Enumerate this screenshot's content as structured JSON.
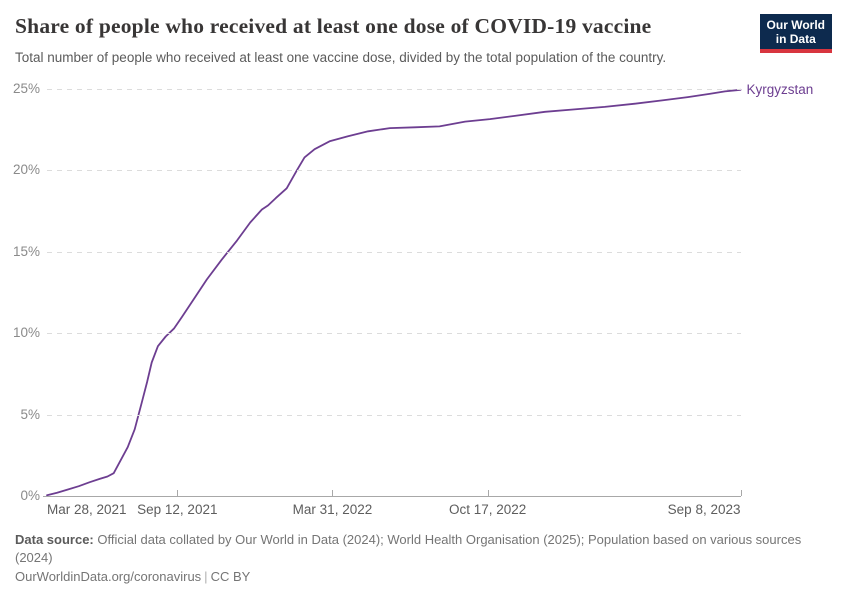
{
  "header": {
    "title": "Share of people who received at least one dose of COVID-19 vaccine",
    "subtitle": "Total number of people who received at least one vaccine dose, divided by the total population of the country.",
    "logo": {
      "line1": "Our World",
      "line2": "in Data"
    }
  },
  "chart_data": {
    "type": "line",
    "title": "Share of people who received at least one dose of COVID-19 vaccine",
    "xlabel": "",
    "ylabel": "",
    "x_range": [
      "2021-03-28",
      "2023-09-08"
    ],
    "ylim": [
      0,
      25
    ],
    "grid": "horizontal-dashed",
    "legend_position": "end-of-line-label",
    "y_ticks": [
      {
        "label": "0%",
        "value": 0
      },
      {
        "label": "5%",
        "value": 5
      },
      {
        "label": "10%",
        "value": 10
      },
      {
        "label": "15%",
        "value": 15
      },
      {
        "label": "20%",
        "value": 20
      },
      {
        "label": "25%",
        "value": 25
      }
    ],
    "x_ticks": [
      {
        "label": "Mar 28, 2021",
        "date": "2021-03-28",
        "align": "left"
      },
      {
        "label": "Sep 12, 2021",
        "date": "2021-09-12",
        "align": "center"
      },
      {
        "label": "Mar 31, 2022",
        "date": "2022-03-31",
        "align": "center"
      },
      {
        "label": "Oct 17, 2022",
        "date": "2022-10-17",
        "align": "center"
      },
      {
        "label": "Sep 8, 2023",
        "date": "2023-09-08",
        "align": "right"
      }
    ],
    "series": [
      {
        "name": "Kyrgyzstan",
        "color": "#6D3E91",
        "points": [
          [
            "2021-03-28",
            0.05
          ],
          [
            "2021-04-10",
            0.2
          ],
          [
            "2021-04-24",
            0.4
          ],
          [
            "2021-05-08",
            0.6
          ],
          [
            "2021-05-22",
            0.85
          ],
          [
            "2021-06-04",
            1.05
          ],
          [
            "2021-06-14",
            1.2
          ],
          [
            "2021-06-22",
            1.4
          ],
          [
            "2021-07-01",
            2.2
          ],
          [
            "2021-07-10",
            3.0
          ],
          [
            "2021-07-19",
            4.1
          ],
          [
            "2021-07-28",
            5.7
          ],
          [
            "2021-08-04",
            7.0
          ],
          [
            "2021-08-10",
            8.2
          ],
          [
            "2021-08-18",
            9.2
          ],
          [
            "2021-08-28",
            9.8
          ],
          [
            "2021-09-08",
            10.3
          ],
          [
            "2021-09-18",
            11.0
          ],
          [
            "2021-10-02",
            12.0
          ],
          [
            "2021-10-20",
            13.3
          ],
          [
            "2021-11-08",
            14.5
          ],
          [
            "2021-11-28",
            15.7
          ],
          [
            "2021-12-15",
            16.8
          ],
          [
            "2021-12-30",
            17.6
          ],
          [
            "2022-01-07",
            17.85
          ],
          [
            "2022-01-17",
            18.3
          ],
          [
            "2022-01-31",
            18.9
          ],
          [
            "2022-02-13",
            20.0
          ],
          [
            "2022-02-23",
            20.8
          ],
          [
            "2022-03-08",
            21.3
          ],
          [
            "2022-03-28",
            21.8
          ],
          [
            "2022-04-20",
            22.1
          ],
          [
            "2022-05-16",
            22.4
          ],
          [
            "2022-06-13",
            22.6
          ],
          [
            "2022-07-15",
            22.65
          ],
          [
            "2022-08-16",
            22.7
          ],
          [
            "2022-09-18",
            23.0
          ],
          [
            "2022-10-20",
            23.15
          ],
          [
            "2022-11-21",
            23.35
          ],
          [
            "2022-12-30",
            23.6
          ],
          [
            "2023-02-06",
            23.75
          ],
          [
            "2023-03-17",
            23.9
          ],
          [
            "2023-04-25",
            24.1
          ],
          [
            "2023-05-30",
            24.3
          ],
          [
            "2023-07-02",
            24.5
          ],
          [
            "2023-07-30",
            24.7
          ],
          [
            "2023-08-19",
            24.85
          ],
          [
            "2023-09-08",
            24.95
          ]
        ]
      }
    ]
  },
  "footer": {
    "source_label": "Data source:",
    "source_line1": "Official data collated by Our World in Data (2024); World Health Organisation (2025); Population based on various sources",
    "source_line2": "(2024)",
    "link": "OurWorldinData.org/coronavirus",
    "separator": "|",
    "license": "CC BY"
  },
  "colors": {
    "line": "#6D3E91",
    "logo_bg": "#0d2a4e",
    "logo_stripe": "#d8353f"
  }
}
